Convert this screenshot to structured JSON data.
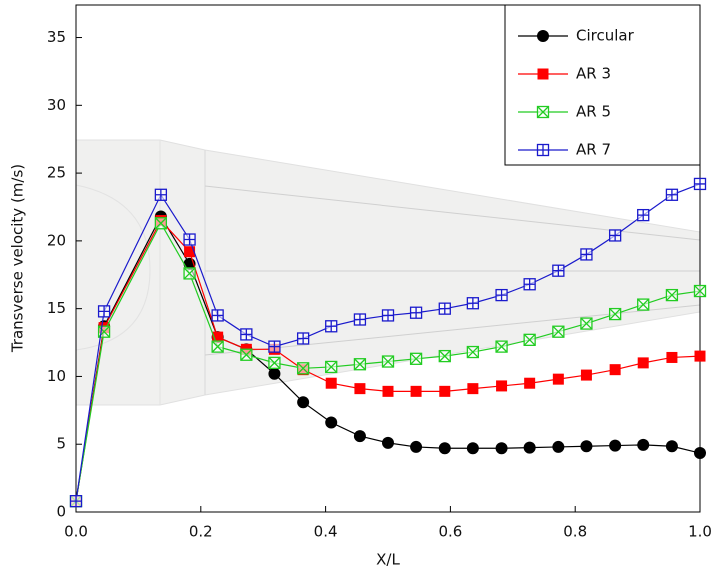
{
  "chart_data": {
    "type": "line",
    "x_label": "X/L",
    "y_label": "Transverse velocity (m/s)",
    "x": [
      0,
      0.045,
      0.136,
      0.182,
      0.227,
      0.273,
      0.318,
      0.364,
      0.409,
      0.455,
      0.5,
      0.545,
      0.591,
      0.636,
      0.682,
      0.727,
      0.773,
      0.818,
      0.864,
      0.909,
      0.955,
      1.0
    ],
    "series": [
      {
        "name": "Circular",
        "color": "#000000",
        "marker": "circle",
        "values": [
          0.8,
          13.7,
          21.8,
          18.3,
          12.9,
          12.0,
          10.2,
          8.1,
          6.6,
          5.6,
          5.1,
          4.8,
          4.7,
          4.7,
          4.7,
          4.75,
          4.8,
          4.85,
          4.9,
          4.95,
          4.85,
          4.35
        ]
      },
      {
        "name": "AR 3",
        "color": "#ff0000",
        "marker": "square",
        "values": [
          0.8,
          13.6,
          21.5,
          19.2,
          12.9,
          12.0,
          12.0,
          10.5,
          9.5,
          9.1,
          8.9,
          8.9,
          8.9,
          9.1,
          9.3,
          9.5,
          9.8,
          10.1,
          10.5,
          11.0,
          11.4,
          11.5
        ]
      },
      {
        "name": "AR 5",
        "color": "#22cc22",
        "marker": "square-x",
        "values": [
          0.8,
          13.3,
          21.3,
          17.6,
          12.2,
          11.6,
          11.0,
          10.6,
          10.7,
          10.9,
          11.1,
          11.3,
          11.5,
          11.8,
          12.2,
          12.7,
          13.3,
          13.9,
          14.6,
          15.3,
          16.0,
          16.3
        ]
      },
      {
        "name": "AR 7",
        "color": "#1a1acc",
        "marker": "square-plus",
        "values": [
          0.8,
          14.8,
          23.4,
          20.1,
          14.5,
          13.1,
          12.2,
          12.8,
          13.7,
          14.2,
          14.5,
          14.7,
          15.0,
          15.4,
          16.0,
          16.8,
          17.8,
          19.0,
          20.4,
          21.9,
          23.4,
          24.2
        ]
      }
    ],
    "xlim": [
      0,
      1
    ],
    "ylim": [
      0,
      37.4
    ],
    "xticks": [
      {
        "value": 0,
        "label": "0.0"
      },
      {
        "value": 0.2,
        "label": "0.2"
      },
      {
        "value": 0.4,
        "label": "0.4"
      },
      {
        "value": 0.6,
        "label": "0.6"
      },
      {
        "value": 0.8,
        "label": "0.8"
      },
      {
        "value": 1,
        "label": "1.0"
      }
    ],
    "yticks": [
      0,
      5,
      10,
      15,
      20,
      25,
      30,
      35
    ],
    "legend": "upper right",
    "grid": false
  }
}
